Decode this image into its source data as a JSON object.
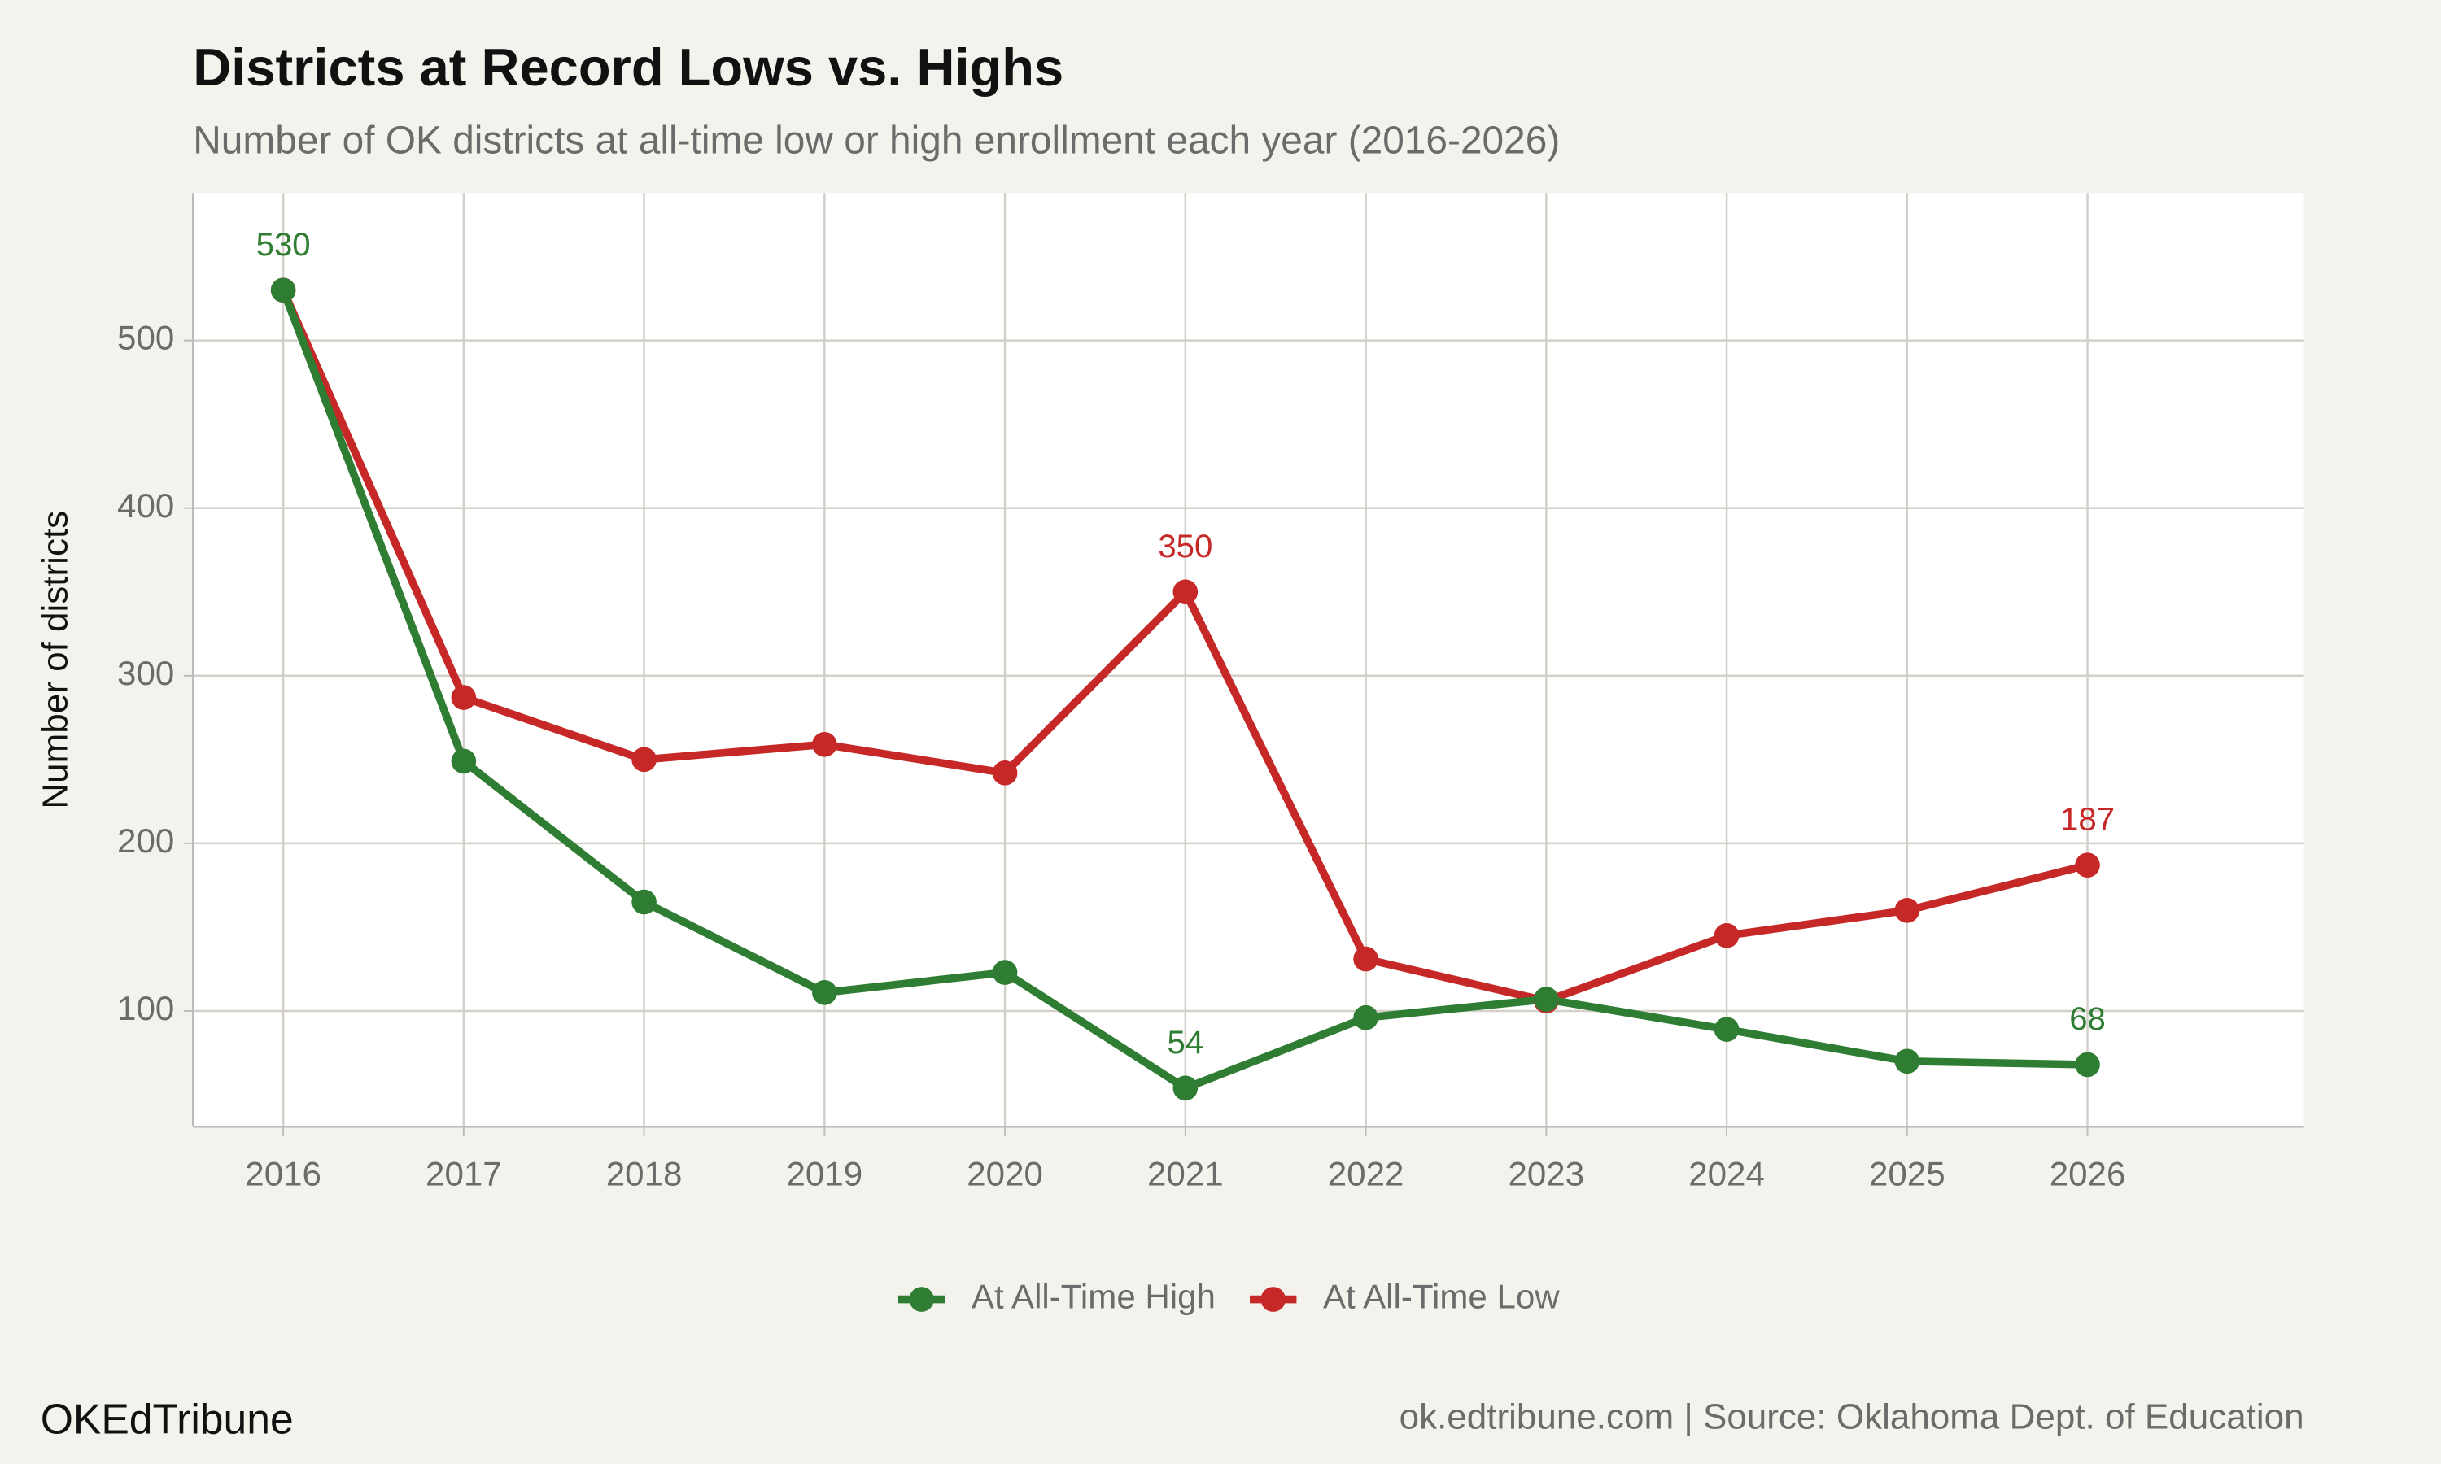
{
  "chart_data": {
    "type": "line",
    "title": "Districts at Record Lows vs. Highs",
    "subtitle": "Number of OK districts at all-time low or high enrollment each year (2016-2026)",
    "y_label": "Number of districts",
    "footer_left": "OKEdTribune",
    "footer_right": "ok.edtribune.com | Source: Oklahoma Dept. of Education",
    "x": [
      2016,
      2017,
      2018,
      2019,
      2020,
      2021,
      2022,
      2023,
      2024,
      2025,
      2026
    ],
    "series": [
      {
        "name": "At All-Time High",
        "color": "#2e7d32",
        "values": [
          530,
          249,
          165,
          111,
          123,
          54,
          96,
          107,
          89,
          70,
          68
        ],
        "data_labels": [
          0,
          5,
          10
        ]
      },
      {
        "name": "At All-Time Low",
        "color": "#c62828",
        "values": [
          530,
          287,
          250,
          259,
          242,
          350,
          131,
          106,
          145,
          160,
          187
        ],
        "data_labels": [
          5,
          10
        ]
      }
    ],
    "xlim": [
      2015.5,
      2027.2
    ],
    "xticks": [
      2016,
      2017,
      2018,
      2019,
      2020,
      2021,
      2022,
      2023,
      2024,
      2025,
      2026
    ],
    "ylim": [
      31,
      588
    ],
    "yticks": [
      100,
      200,
      300,
      400,
      500
    ],
    "grid": true,
    "legend": "bottom"
  }
}
